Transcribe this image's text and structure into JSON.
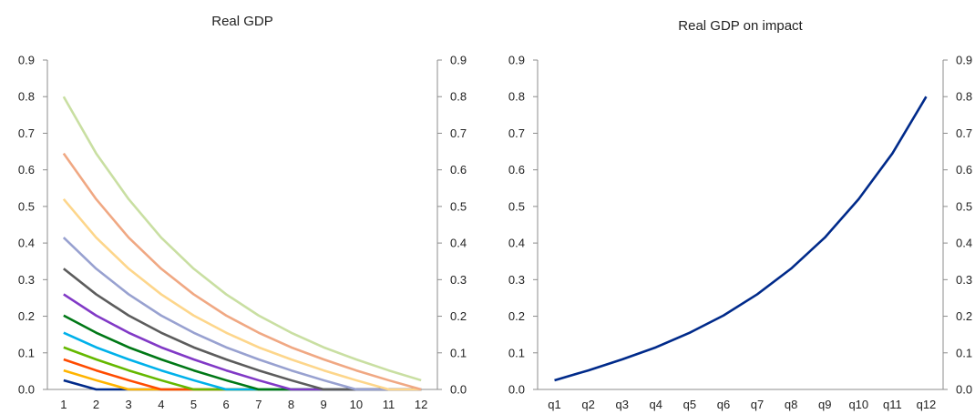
{
  "chart_data": [
    {
      "type": "line",
      "title": "Real GDP",
      "xlabel": "",
      "ylabel": "",
      "categories": [
        "1",
        "2",
        "3",
        "4",
        "5",
        "6",
        "7",
        "8",
        "9",
        "10",
        "11",
        "12"
      ],
      "ylim": [
        0,
        0.9
      ],
      "yticks": [
        "0.0",
        "0.1",
        "0.2",
        "0.3",
        "0.4",
        "0.5",
        "0.6",
        "0.7",
        "0.8",
        "0.9"
      ],
      "grid": false,
      "legend": "none",
      "series": [
        {
          "color": "#002a8a",
          "values": [
            0.025,
            0.0,
            0.0,
            0.0,
            0.0,
            0.0,
            0.0,
            0.0,
            0.0,
            0.0,
            0.0,
            0.0
          ]
        },
        {
          "color": "#ffb400",
          "values": [
            0.052,
            0.025,
            0.0,
            0.0,
            0.0,
            0.0,
            0.0,
            0.0,
            0.0,
            0.0,
            0.0,
            0.0
          ]
        },
        {
          "color": "#ff4b00",
          "values": [
            0.082,
            0.052,
            0.025,
            0.0,
            0.0,
            0.0,
            0.0,
            0.0,
            0.0,
            0.0,
            0.0,
            0.0
          ]
        },
        {
          "color": "#65b800",
          "values": [
            0.115,
            0.082,
            0.052,
            0.025,
            0.0,
            0.0,
            0.0,
            0.0,
            0.0,
            0.0,
            0.0,
            0.0
          ]
        },
        {
          "color": "#00b1ea",
          "values": [
            0.155,
            0.115,
            0.082,
            0.052,
            0.025,
            0.0,
            0.0,
            0.0,
            0.0,
            0.0,
            0.0,
            0.0
          ]
        },
        {
          "color": "#007816",
          "values": [
            0.202,
            0.155,
            0.115,
            0.082,
            0.052,
            0.025,
            0.0,
            0.0,
            0.0,
            0.0,
            0.0,
            0.0
          ]
        },
        {
          "color": "#8139c6",
          "values": [
            0.26,
            0.202,
            0.155,
            0.115,
            0.082,
            0.052,
            0.025,
            0.0,
            0.0,
            0.0,
            0.0,
            0.0
          ]
        },
        {
          "color": "#5c5c5c",
          "values": [
            0.33,
            0.26,
            0.202,
            0.155,
            0.115,
            0.082,
            0.052,
            0.025,
            0.0,
            0.0,
            0.0,
            0.0
          ]
        },
        {
          "color": "#98a1d0",
          "values": [
            0.415,
            0.33,
            0.26,
            0.202,
            0.155,
            0.115,
            0.082,
            0.052,
            0.025,
            0.0,
            0.0,
            0.0
          ]
        },
        {
          "color": "#fdd68b",
          "values": [
            0.52,
            0.415,
            0.33,
            0.26,
            0.202,
            0.155,
            0.115,
            0.082,
            0.052,
            0.025,
            0.0,
            0.0
          ]
        },
        {
          "color": "#f0a883",
          "values": [
            0.645,
            0.52,
            0.415,
            0.33,
            0.26,
            0.202,
            0.155,
            0.115,
            0.082,
            0.052,
            0.025,
            0.0
          ]
        },
        {
          "color": "#c9dfa2",
          "values": [
            0.8,
            0.645,
            0.52,
            0.415,
            0.33,
            0.26,
            0.202,
            0.155,
            0.115,
            0.082,
            0.052,
            0.025
          ]
        }
      ]
    },
    {
      "type": "line",
      "title": "Real GDP on impact",
      "xlabel": "",
      "ylabel": "",
      "categories": [
        "q1",
        "q2",
        "q3",
        "q4",
        "q5",
        "q6",
        "q7",
        "q8",
        "q9",
        "q10",
        "q11",
        "q12"
      ],
      "ylim": [
        0,
        0.9
      ],
      "yticks": [
        "0.0",
        "0.1",
        "0.2",
        "0.3",
        "0.4",
        "0.5",
        "0.6",
        "0.7",
        "0.8",
        "0.9"
      ],
      "grid": false,
      "legend": "none",
      "series": [
        {
          "color": "#002a8a",
          "values": [
            0.025,
            0.052,
            0.082,
            0.115,
            0.155,
            0.202,
            0.26,
            0.33,
            0.415,
            0.52,
            0.645,
            0.8
          ]
        }
      ]
    }
  ]
}
